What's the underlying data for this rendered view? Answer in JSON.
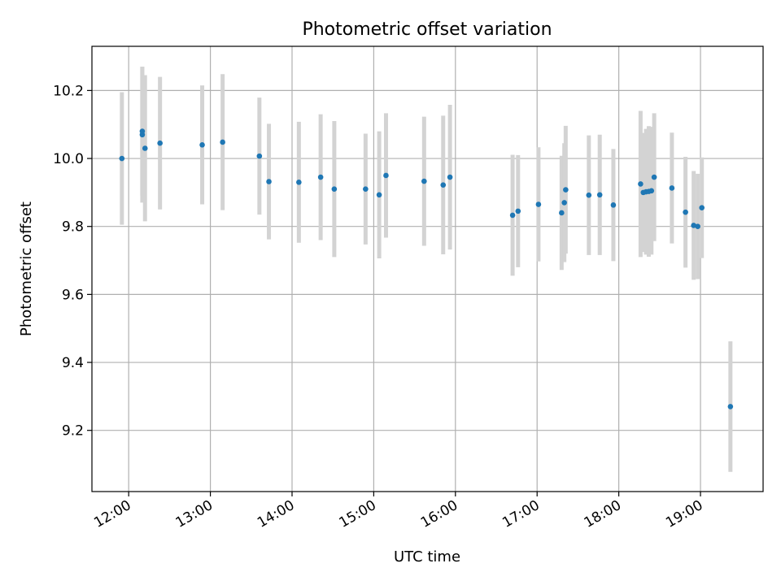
{
  "chart_data": {
    "type": "scatter",
    "title": "Photometric offset variation",
    "xlabel": "UTC time",
    "ylabel": "Photometric offset",
    "xlim": [
      "11:33",
      "19:46"
    ],
    "ylim": [
      9.02,
      10.33
    ],
    "x_ticks": [
      "12:00",
      "13:00",
      "14:00",
      "15:00",
      "16:00",
      "17:00",
      "18:00",
      "19:00"
    ],
    "y_ticks": [
      9.2,
      9.4,
      9.6,
      9.8,
      10.0,
      10.2
    ],
    "grid": true,
    "legend": "none",
    "colors": {
      "points": "#1f77b4",
      "errorbars": "#d3d3d3",
      "grid": "#b0b0b0"
    },
    "points": [
      {
        "x": "11:55",
        "y": 10.0,
        "err": 0.195
      },
      {
        "x": "12:10",
        "y": 10.07,
        "err": 0.2
      },
      {
        "x": "12:10",
        "y": 10.08,
        "err": 0.19
      },
      {
        "x": "12:12",
        "y": 10.03,
        "err": 0.215
      },
      {
        "x": "12:23",
        "y": 10.045,
        "err": 0.195
      },
      {
        "x": "12:54",
        "y": 10.04,
        "err": 0.175
      },
      {
        "x": "13:09",
        "y": 10.048,
        "err": 0.2
      },
      {
        "x": "13:36",
        "y": 10.007,
        "err": 0.172
      },
      {
        "x": "13:43",
        "y": 9.932,
        "err": 0.17
      },
      {
        "x": "14:05",
        "y": 9.93,
        "err": 0.178
      },
      {
        "x": "14:21",
        "y": 9.945,
        "err": 0.185
      },
      {
        "x": "14:31",
        "y": 9.91,
        "err": 0.2
      },
      {
        "x": "14:54",
        "y": 9.91,
        "err": 0.163
      },
      {
        "x": "15:04",
        "y": 9.893,
        "err": 0.187
      },
      {
        "x": "15:09",
        "y": 9.95,
        "err": 0.183
      },
      {
        "x": "15:37",
        "y": 9.933,
        "err": 0.19
      },
      {
        "x": "15:51",
        "y": 9.922,
        "err": 0.204
      },
      {
        "x": "15:56",
        "y": 9.945,
        "err": 0.213
      },
      {
        "x": "16:42",
        "y": 9.833,
        "err": 0.178
      },
      {
        "x": "16:46",
        "y": 9.845,
        "err": 0.165
      },
      {
        "x": "17:01",
        "y": 9.865,
        "err": 0.168
      },
      {
        "x": "17:18",
        "y": 9.84,
        "err": 0.168
      },
      {
        "x": "17:20",
        "y": 9.87,
        "err": 0.175
      },
      {
        "x": "17:21",
        "y": 9.908,
        "err": 0.188
      },
      {
        "x": "17:38",
        "y": 9.892,
        "err": 0.176
      },
      {
        "x": "17:46",
        "y": 9.893,
        "err": 0.177
      },
      {
        "x": "17:56",
        "y": 9.863,
        "err": 0.165
      },
      {
        "x": "18:16",
        "y": 9.925,
        "err": 0.215
      },
      {
        "x": "18:18",
        "y": 9.9,
        "err": 0.175
      },
      {
        "x": "18:20",
        "y": 9.902,
        "err": 0.185
      },
      {
        "x": "18:22",
        "y": 9.903,
        "err": 0.192
      },
      {
        "x": "18:24",
        "y": 9.905,
        "err": 0.188
      },
      {
        "x": "18:26",
        "y": 9.945,
        "err": 0.188
      },
      {
        "x": "18:39",
        "y": 9.913,
        "err": 0.163
      },
      {
        "x": "18:49",
        "y": 9.842,
        "err": 0.163
      },
      {
        "x": "18:55",
        "y": 9.803,
        "err": 0.16
      },
      {
        "x": "18:58",
        "y": 9.8,
        "err": 0.155
      },
      {
        "x": "19:01",
        "y": 9.855,
        "err": 0.148
      },
      {
        "x": "19:22",
        "y": 9.27,
        "err": 0.192
      }
    ]
  }
}
